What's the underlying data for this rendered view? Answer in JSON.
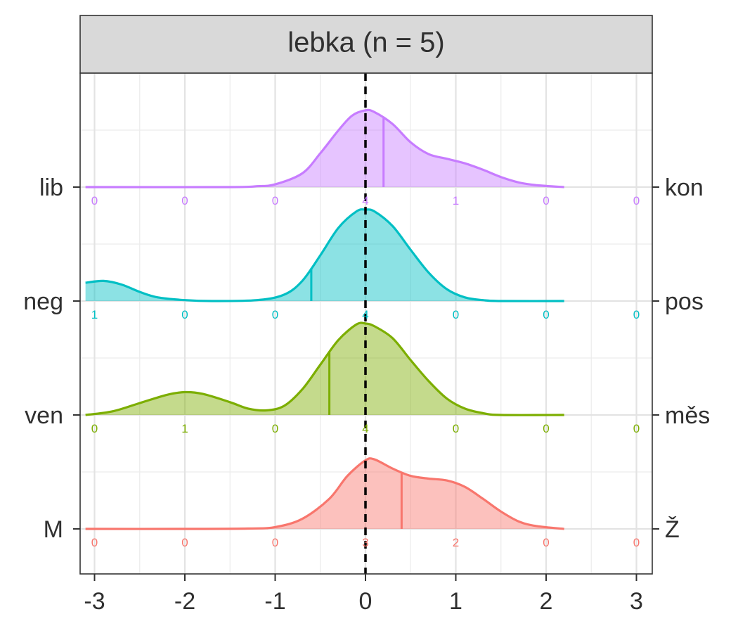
{
  "chart_data": {
    "type": "ridgeline",
    "facet_title": "lebka (n = 5)",
    "x_ticks": [
      -3,
      -2,
      -1,
      0,
      1,
      2,
      3
    ],
    "x_tick_labels": [
      "-3",
      "-2",
      "-1",
      "0",
      "1",
      "2",
      "3"
    ],
    "xlim": [
      -3.1,
      3.1
    ],
    "reference_x": 0,
    "count_positions": [
      -3,
      -2,
      -1,
      0,
      1,
      2,
      3
    ],
    "rows": [
      {
        "left_label": "M",
        "right_label": "Ž",
        "color": "#F8766D",
        "median": 0.4,
        "counts": [
          "0",
          "0",
          "0",
          "3",
          "2",
          "0",
          "0"
        ],
        "density": [
          [
            -3.1,
            0
          ],
          [
            -2.0,
            0
          ],
          [
            -1.3,
            0.004
          ],
          [
            -1.0,
            0.02
          ],
          [
            -0.7,
            0.11
          ],
          [
            -0.4,
            0.33
          ],
          [
            -0.2,
            0.58
          ],
          [
            0.0,
            0.75
          ],
          [
            0.1,
            0.76
          ],
          [
            0.3,
            0.66
          ],
          [
            0.5,
            0.58
          ],
          [
            0.7,
            0.55
          ],
          [
            0.9,
            0.53
          ],
          [
            1.1,
            0.46
          ],
          [
            1.3,
            0.33
          ],
          [
            1.5,
            0.19
          ],
          [
            1.7,
            0.08
          ],
          [
            1.9,
            0.03
          ],
          [
            2.2,
            0.0
          ]
        ]
      },
      {
        "left_label": "ven",
        "right_label": "měs",
        "color": "#7CAE00",
        "median": -0.4,
        "counts": [
          "0",
          "1",
          "0",
          "4",
          "0",
          "0",
          "0"
        ],
        "density": [
          [
            -3.1,
            0.0
          ],
          [
            -2.8,
            0.04
          ],
          [
            -2.5,
            0.13
          ],
          [
            -2.2,
            0.22
          ],
          [
            -2.0,
            0.25
          ],
          [
            -1.8,
            0.23
          ],
          [
            -1.5,
            0.14
          ],
          [
            -1.3,
            0.07
          ],
          [
            -1.1,
            0.05
          ],
          [
            -0.9,
            0.1
          ],
          [
            -0.7,
            0.28
          ],
          [
            -0.5,
            0.55
          ],
          [
            -0.3,
            0.82
          ],
          [
            -0.1,
            0.99
          ],
          [
            0.0,
            1.0
          ],
          [
            0.1,
            0.97
          ],
          [
            0.3,
            0.84
          ],
          [
            0.5,
            0.6
          ],
          [
            0.7,
            0.37
          ],
          [
            0.9,
            0.18
          ],
          [
            1.1,
            0.07
          ],
          [
            1.3,
            0.02
          ],
          [
            1.5,
            0.0
          ],
          [
            2.2,
            0.0
          ]
        ]
      },
      {
        "left_label": "neg",
        "right_label": "pos",
        "color": "#00BFC4",
        "median": -0.6,
        "counts": [
          "1",
          "0",
          "0",
          "4",
          "0",
          "0",
          "0"
        ],
        "density": [
          [
            -3.1,
            0.2
          ],
          [
            -2.9,
            0.22
          ],
          [
            -2.7,
            0.18
          ],
          [
            -2.5,
            0.1
          ],
          [
            -2.3,
            0.04
          ],
          [
            -2.0,
            0.01
          ],
          [
            -1.7,
            0.0
          ],
          [
            -1.2,
            0.01
          ],
          [
            -0.9,
            0.07
          ],
          [
            -0.7,
            0.22
          ],
          [
            -0.5,
            0.5
          ],
          [
            -0.3,
            0.8
          ],
          [
            -0.1,
            0.98
          ],
          [
            0.0,
            1.0
          ],
          [
            0.1,
            0.98
          ],
          [
            0.3,
            0.82
          ],
          [
            0.5,
            0.56
          ],
          [
            0.7,
            0.31
          ],
          [
            0.9,
            0.13
          ],
          [
            1.1,
            0.04
          ],
          [
            1.3,
            0.01
          ],
          [
            1.5,
            0.0
          ],
          [
            2.2,
            0.0
          ]
        ]
      },
      {
        "left_label": "lib",
        "right_label": "kon",
        "color": "#C77CFF",
        "median": 0.2,
        "counts": [
          "0",
          "0",
          "0",
          "4",
          "1",
          "0",
          "0"
        ],
        "density": [
          [
            -3.1,
            0
          ],
          [
            -1.5,
            0
          ],
          [
            -1.2,
            0.01
          ],
          [
            -1.0,
            0.03
          ],
          [
            -0.7,
            0.15
          ],
          [
            -0.5,
            0.37
          ],
          [
            -0.3,
            0.62
          ],
          [
            -0.15,
            0.78
          ],
          [
            0.0,
            0.84
          ],
          [
            0.1,
            0.82
          ],
          [
            0.3,
            0.69
          ],
          [
            0.5,
            0.49
          ],
          [
            0.7,
            0.36
          ],
          [
            0.9,
            0.31
          ],
          [
            1.1,
            0.26
          ],
          [
            1.3,
            0.19
          ],
          [
            1.5,
            0.11
          ],
          [
            1.7,
            0.05
          ],
          [
            1.9,
            0.02
          ],
          [
            2.2,
            0.0
          ]
        ]
      }
    ],
    "grid": true,
    "legend": "none"
  }
}
